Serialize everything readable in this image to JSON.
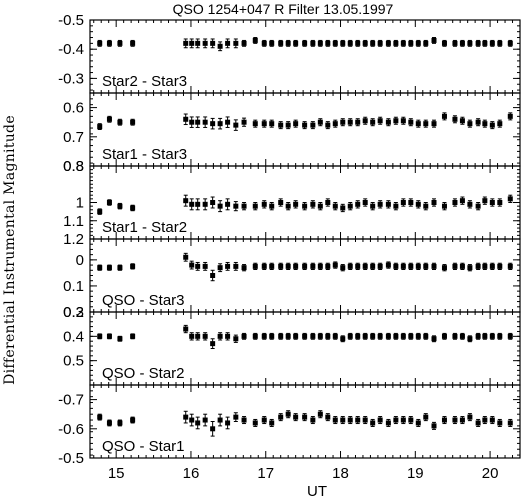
{
  "chart_data": {
    "type": "scatter",
    "title": "QSO 1254+047 R Filter 13.05.1997",
    "xlabel": "UT",
    "ylabel": "Differential Instrumental Magnitude",
    "xlim": [
      14.65,
      20.4
    ],
    "x_ticks": [
      15,
      16,
      17,
      18,
      19,
      20
    ],
    "x_tick_labels": [
      "15",
      "16",
      "17",
      "18",
      "19",
      "20"
    ],
    "x": [
      14.78,
      14.91,
      15.05,
      15.22,
      15.93,
      16.01,
      16.09,
      16.19,
      16.29,
      16.39,
      16.49,
      16.6,
      16.71,
      16.86,
      16.98,
      17.08,
      17.2,
      17.3,
      17.4,
      17.52,
      17.63,
      17.73,
      17.83,
      17.93,
      18.03,
      18.13,
      18.23,
      18.33,
      18.43,
      18.53,
      18.64,
      18.74,
      18.84,
      18.94,
      19.04,
      19.14,
      19.25,
      19.39,
      19.53,
      19.63,
      19.73,
      19.84,
      19.93,
      20.03,
      20.13,
      20.27
    ],
    "panels": [
      {
        "label": "Star2 - Star3",
        "ylim": [
          -0.5,
          -0.25
        ],
        "inverted": true,
        "y_ticks": [
          -0.5,
          -0.4,
          -0.3
        ],
        "y_tick_labels": [
          "-0.5",
          "-0.4",
          "-0.3"
        ],
        "y": [
          -0.42,
          -0.42,
          -0.42,
          -0.42,
          -0.42,
          -0.42,
          -0.42,
          -0.42,
          -0.42,
          -0.41,
          -0.42,
          -0.42,
          -0.42,
          -0.43,
          -0.42,
          -0.42,
          -0.42,
          -0.42,
          -0.42,
          -0.42,
          -0.42,
          -0.42,
          -0.42,
          -0.42,
          -0.42,
          -0.42,
          -0.42,
          -0.42,
          -0.42,
          -0.42,
          -0.42,
          -0.42,
          -0.42,
          -0.42,
          -0.42,
          -0.42,
          -0.43,
          -0.42,
          -0.42,
          -0.42,
          -0.42,
          -0.42,
          -0.42,
          -0.42,
          -0.42,
          -0.42
        ],
        "err": [
          0.01,
          0.01,
          0.01,
          0.01,
          0.015,
          0.015,
          0.015,
          0.015,
          0.015,
          0.015,
          0.015,
          0.015,
          0.01,
          0.01,
          0.01,
          0.01,
          0.01,
          0.01,
          0.01,
          0.01,
          0.01,
          0.01,
          0.01,
          0.01,
          0.01,
          0.01,
          0.01,
          0.01,
          0.01,
          0.01,
          0.01,
          0.01,
          0.01,
          0.01,
          0.01,
          0.01,
          0.01,
          0.01,
          0.01,
          0.01,
          0.01,
          0.01,
          0.01,
          0.01,
          0.01,
          0.01
        ]
      },
      {
        "label": "Star1 - Star3",
        "ylim": [
          0.55,
          0.8
        ],
        "inverted": true,
        "y_ticks": [
          0.6,
          0.7,
          0.8
        ],
        "y_tick_labels": [
          "0.6",
          "0.7",
          "0.8"
        ],
        "y": [
          0.665,
          0.64,
          0.65,
          0.65,
          0.64,
          0.65,
          0.65,
          0.65,
          0.655,
          0.655,
          0.65,
          0.66,
          0.65,
          0.655,
          0.655,
          0.655,
          0.66,
          0.66,
          0.655,
          0.66,
          0.66,
          0.65,
          0.66,
          0.655,
          0.65,
          0.65,
          0.65,
          0.645,
          0.65,
          0.645,
          0.65,
          0.645,
          0.645,
          0.65,
          0.655,
          0.655,
          0.655,
          0.63,
          0.64,
          0.645,
          0.655,
          0.65,
          0.655,
          0.66,
          0.655,
          0.63
        ],
        "err": [
          0.01,
          0.01,
          0.01,
          0.01,
          0.018,
          0.018,
          0.018,
          0.018,
          0.018,
          0.018,
          0.018,
          0.018,
          0.014,
          0.012,
          0.012,
          0.012,
          0.012,
          0.012,
          0.012,
          0.012,
          0.012,
          0.012,
          0.012,
          0.012,
          0.012,
          0.012,
          0.012,
          0.012,
          0.012,
          0.012,
          0.012,
          0.012,
          0.012,
          0.012,
          0.012,
          0.012,
          0.012,
          0.012,
          0.012,
          0.012,
          0.012,
          0.012,
          0.012,
          0.012,
          0.012,
          0.012
        ]
      },
      {
        "label": "Star1 - Star2",
        "ylim": [
          0.8,
          1.2
        ],
        "inverted": true,
        "y_ticks": [
          0.8,
          1.0,
          1.1,
          1.2
        ],
        "y_tick_labels": [
          "0.8",
          "1",
          "1.1",
          "1.2"
        ],
        "y": [
          1.05,
          1.0,
          1.02,
          1.03,
          0.99,
          1.01,
          1.01,
          1.01,
          1.0,
          1.02,
          1.01,
          1.02,
          1.02,
          1.02,
          1.01,
          1.02,
          1.0,
          1.02,
          1.01,
          1.02,
          1.01,
          1.02,
          1.0,
          1.02,
          1.03,
          1.02,
          1.01,
          1.0,
          1.02,
          1.01,
          1.01,
          1.02,
          1.0,
          1.0,
          1.01,
          1.02,
          1.0,
          1.02,
          1.0,
          0.99,
          1.01,
          1.02,
          0.99,
          1.0,
          1.0,
          0.98
        ],
        "err": [
          0.015,
          0.015,
          0.015,
          0.015,
          0.03,
          0.03,
          0.03,
          0.03,
          0.03,
          0.03,
          0.03,
          0.025,
          0.02,
          0.02,
          0.02,
          0.02,
          0.02,
          0.02,
          0.02,
          0.02,
          0.02,
          0.02,
          0.02,
          0.02,
          0.02,
          0.02,
          0.02,
          0.02,
          0.02,
          0.02,
          0.02,
          0.02,
          0.02,
          0.02,
          0.02,
          0.02,
          0.02,
          0.02,
          0.02,
          0.02,
          0.02,
          0.02,
          0.02,
          0.02,
          0.02,
          0.02
        ]
      },
      {
        "label": "QSO - Star3",
        "ylim": [
          -0.08,
          0.2
        ],
        "inverted": true,
        "y_ticks": [
          0.0,
          0.1,
          0.2
        ],
        "y_tick_labels": [
          "0",
          "0.1",
          "0.2"
        ],
        "y": [
          0.03,
          0.03,
          0.03,
          0.025,
          -0.01,
          0.02,
          0.025,
          0.025,
          0.06,
          0.03,
          0.025,
          0.025,
          0.03,
          0.025,
          0.025,
          0.025,
          0.025,
          0.025,
          0.025,
          0.025,
          0.025,
          0.025,
          0.025,
          0.02,
          0.03,
          0.025,
          0.025,
          0.025,
          0.025,
          0.025,
          0.02,
          0.025,
          0.025,
          0.025,
          0.025,
          0.025,
          0.025,
          0.03,
          0.025,
          0.025,
          0.03,
          0.025,
          0.025,
          0.025,
          0.025,
          0.025
        ],
        "err": [
          0.01,
          0.01,
          0.01,
          0.01,
          0.015,
          0.015,
          0.015,
          0.015,
          0.02,
          0.015,
          0.015,
          0.015,
          0.012,
          0.012,
          0.012,
          0.012,
          0.012,
          0.012,
          0.012,
          0.012,
          0.012,
          0.012,
          0.012,
          0.012,
          0.012,
          0.012,
          0.012,
          0.012,
          0.012,
          0.012,
          0.012,
          0.012,
          0.012,
          0.012,
          0.012,
          0.012,
          0.012,
          0.012,
          0.012,
          0.012,
          0.012,
          0.012,
          0.012,
          0.012,
          0.012,
          0.012
        ]
      },
      {
        "label": "QSO - Star2",
        "ylim": [
          0.3,
          0.6
        ],
        "inverted": true,
        "y_ticks": [
          0.3,
          0.4,
          0.5
        ],
        "y_tick_labels": [
          "0.3",
          "0.4",
          "0.5"
        ],
        "y": [
          0.4,
          0.4,
          0.41,
          0.4,
          0.37,
          0.4,
          0.4,
          0.4,
          0.43,
          0.4,
          0.4,
          0.41,
          0.4,
          0.4,
          0.4,
          0.4,
          0.4,
          0.4,
          0.4,
          0.4,
          0.4,
          0.4,
          0.4,
          0.4,
          0.41,
          0.4,
          0.4,
          0.4,
          0.4,
          0.4,
          0.4,
          0.4,
          0.4,
          0.4,
          0.4,
          0.4,
          0.41,
          0.4,
          0.4,
          0.4,
          0.41,
          0.4,
          0.4,
          0.4,
          0.4,
          0.4
        ],
        "err": [
          0.01,
          0.01,
          0.01,
          0.01,
          0.015,
          0.015,
          0.015,
          0.015,
          0.02,
          0.015,
          0.015,
          0.015,
          0.012,
          0.012,
          0.012,
          0.012,
          0.012,
          0.012,
          0.012,
          0.012,
          0.012,
          0.012,
          0.012,
          0.012,
          0.012,
          0.012,
          0.012,
          0.012,
          0.012,
          0.012,
          0.012,
          0.012,
          0.012,
          0.012,
          0.012,
          0.012,
          0.012,
          0.012,
          0.012,
          0.012,
          0.012,
          0.012,
          0.012,
          0.012,
          0.012,
          0.012
        ]
      },
      {
        "label": "QSO - Star1",
        "ylim": [
          -0.75,
          -0.5
        ],
        "inverted": true,
        "y_ticks": [
          -0.7,
          -0.6,
          -0.5
        ],
        "y_tick_labels": [
          "-0.7",
          "-0.6",
          "-0.5"
        ],
        "y": [
          -0.64,
          -0.62,
          -0.62,
          -0.63,
          -0.64,
          -0.63,
          -0.62,
          -0.63,
          -0.6,
          -0.63,
          -0.62,
          -0.64,
          -0.63,
          -0.62,
          -0.63,
          -0.62,
          -0.64,
          -0.65,
          -0.64,
          -0.64,
          -0.63,
          -0.65,
          -0.64,
          -0.63,
          -0.63,
          -0.63,
          -0.63,
          -0.63,
          -0.62,
          -0.63,
          -0.62,
          -0.63,
          -0.63,
          -0.63,
          -0.62,
          -0.64,
          -0.61,
          -0.63,
          -0.63,
          -0.63,
          -0.64,
          -0.62,
          -0.63,
          -0.63,
          -0.62,
          -0.62
        ],
        "err": [
          0.01,
          0.01,
          0.01,
          0.01,
          0.02,
          0.02,
          0.02,
          0.02,
          0.025,
          0.02,
          0.02,
          0.015,
          0.012,
          0.012,
          0.012,
          0.012,
          0.012,
          0.012,
          0.012,
          0.012,
          0.012,
          0.012,
          0.012,
          0.012,
          0.012,
          0.012,
          0.012,
          0.012,
          0.012,
          0.012,
          0.012,
          0.012,
          0.012,
          0.012,
          0.012,
          0.012,
          0.012,
          0.012,
          0.012,
          0.012,
          0.012,
          0.012,
          0.012,
          0.012,
          0.012,
          0.012
        ]
      }
    ]
  }
}
